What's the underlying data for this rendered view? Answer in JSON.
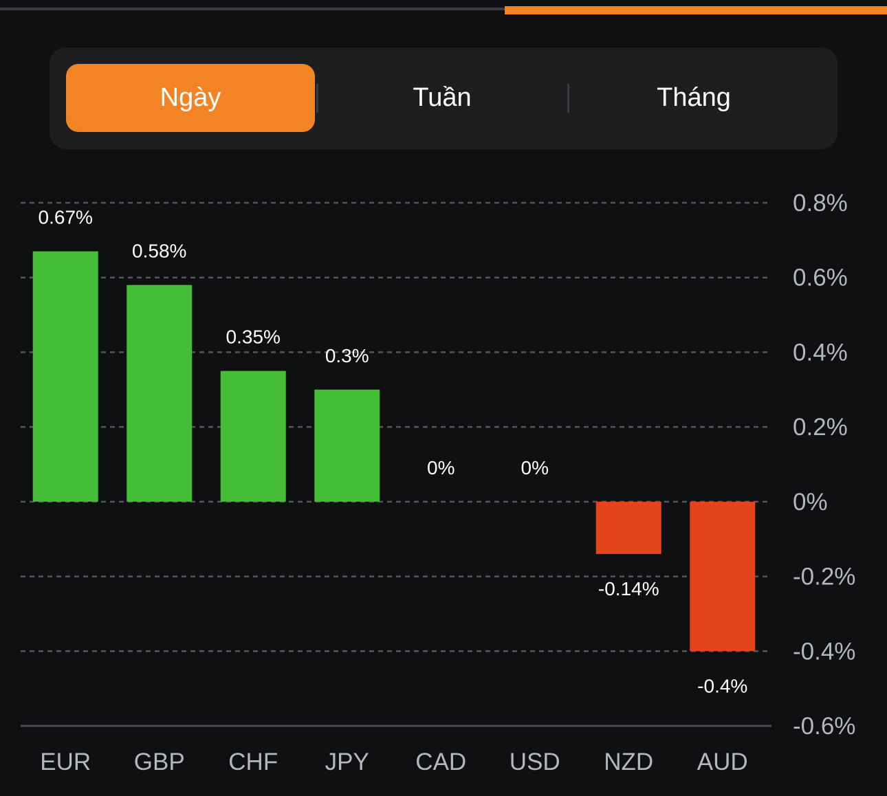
{
  "tabs": {
    "items": [
      {
        "label": "Ngày",
        "active": true
      },
      {
        "label": "Tuần",
        "active": false
      },
      {
        "label": "Tháng",
        "active": false
      }
    ]
  },
  "colors": {
    "accent": "#f38426",
    "positive": "#45bd36",
    "negative": "#e54319",
    "background": "#0f1012"
  },
  "chart_data": {
    "type": "bar",
    "title": "",
    "xlabel": "",
    "ylabel": "",
    "categories": [
      "EUR",
      "GBP",
      "CHF",
      "JPY",
      "CAD",
      "USD",
      "NZD",
      "AUD"
    ],
    "values": [
      0.67,
      0.58,
      0.35,
      0.3,
      0,
      0,
      -0.14,
      -0.4
    ],
    "value_labels": [
      "0.67%",
      "0.58%",
      "0.35%",
      "0.3%",
      "0%",
      "0%",
      "-0.14%",
      "-0.4%"
    ],
    "ylim": [
      -0.6,
      0.8
    ],
    "yticks": [
      0.8,
      0.6,
      0.4,
      0.2,
      0,
      -0.2,
      -0.4,
      -0.6
    ],
    "ytick_labels": [
      "0.8%",
      "0.6%",
      "0.4%",
      "0.2%",
      "0%",
      "-0.2%",
      "-0.4%",
      "-0.6%"
    ],
    "y_axis_position": "right",
    "grid": true,
    "legend": "none"
  }
}
